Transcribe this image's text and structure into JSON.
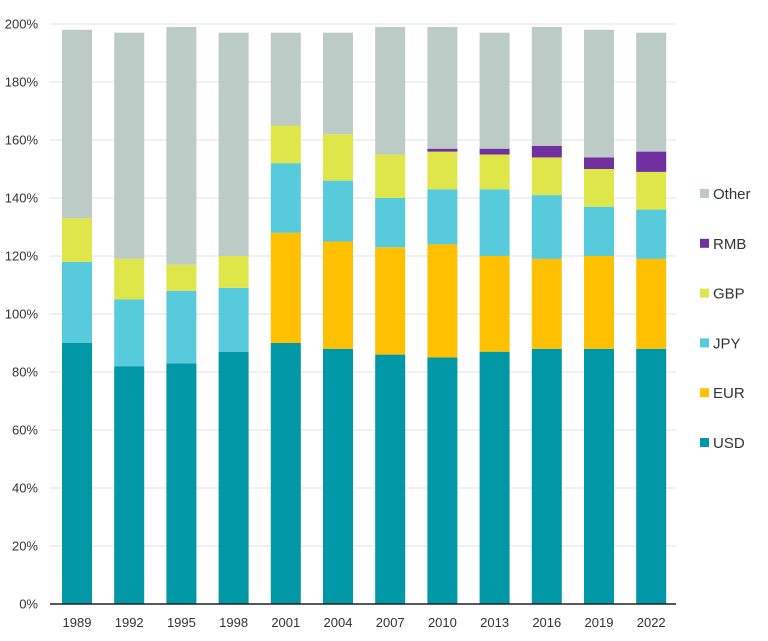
{
  "chart_data": {
    "type": "bar",
    "stacked": true,
    "categories": [
      "1989",
      "1992",
      "1995",
      "1998",
      "2001",
      "2004",
      "2007",
      "2010",
      "2013",
      "2016",
      "2019",
      "2022"
    ],
    "series": [
      {
        "name": "USD",
        "color": "#0097a7",
        "values": [
          90,
          82,
          83,
          87,
          90,
          88,
          86,
          85,
          87,
          88,
          88,
          88
        ]
      },
      {
        "name": "EUR",
        "color": "#ffc000",
        "values": [
          0,
          0,
          0,
          0,
          38,
          37,
          37,
          39,
          33,
          31,
          32,
          31
        ]
      },
      {
        "name": "JPY",
        "color": "#57cbdc",
        "values": [
          28,
          23,
          25,
          22,
          24,
          21,
          17,
          19,
          23,
          22,
          17,
          17
        ]
      },
      {
        "name": "GBP",
        "color": "#dfe64a",
        "values": [
          15,
          14,
          9,
          11,
          13,
          16,
          15,
          13,
          12,
          13,
          13,
          13
        ]
      },
      {
        "name": "RMB",
        "color": "#7030a0",
        "values": [
          0,
          0,
          0,
          0,
          0,
          0,
          0,
          1,
          2,
          4,
          4,
          7
        ]
      },
      {
        "name": "Other",
        "color": "#bccbc6",
        "values": [
          65,
          78,
          82,
          77,
          32,
          35,
          44,
          42,
          40,
          41,
          44,
          41
        ]
      }
    ],
    "ylim": [
      0,
      200
    ],
    "yticks": [
      0,
      20,
      40,
      60,
      80,
      100,
      120,
      140,
      160,
      180,
      200
    ],
    "ytick_suffix": "%",
    "grid": true,
    "legend_position": "right",
    "legend_order": [
      "Other",
      "RMB",
      "GBP",
      "JPY",
      "EUR",
      "USD"
    ]
  }
}
